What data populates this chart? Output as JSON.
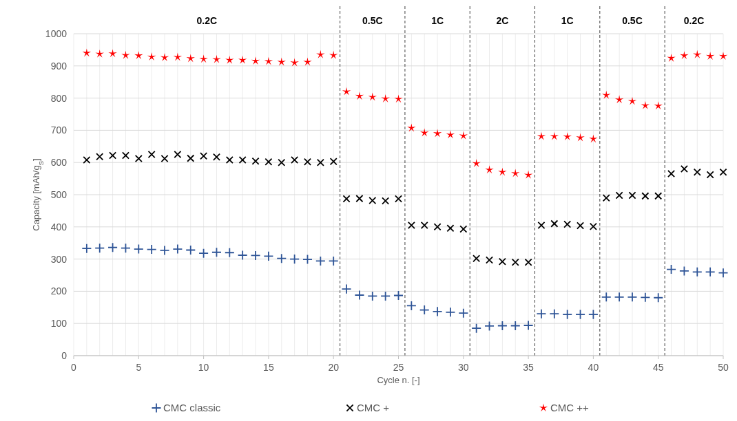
{
  "chart_data": {
    "type": "scatter",
    "xlabel": "Cycle n. [-]",
    "ylabel": "Capacity [mAh/g$_{S}$]",
    "x": [
      1,
      2,
      3,
      4,
      5,
      6,
      7,
      8,
      9,
      10,
      11,
      12,
      13,
      14,
      15,
      16,
      17,
      18,
      19,
      20,
      21,
      22,
      23,
      24,
      25,
      26,
      27,
      28,
      29,
      30,
      31,
      32,
      33,
      34,
      35,
      36,
      37,
      38,
      39,
      40,
      41,
      42,
      43,
      44,
      45,
      46,
      47,
      48,
      49,
      50
    ],
    "xlim": [
      0,
      50
    ],
    "xticks": [
      0,
      5,
      10,
      15,
      20,
      25,
      30,
      35,
      40,
      45,
      50
    ],
    "ylim": [
      0,
      1000
    ],
    "yticks": [
      0,
      100,
      200,
      300,
      400,
      500,
      600,
      700,
      800,
      900,
      1000
    ],
    "grid": true,
    "legend": "bottom",
    "series": [
      {
        "name": "CMC classic",
        "color": "#2f5597",
        "marker": "cross",
        "values": [
          333,
          334,
          336,
          334,
          331,
          330,
          327,
          331,
          328,
          318,
          321,
          320,
          312,
          311,
          309,
          302,
          300,
          299,
          294,
          294,
          207,
          188,
          185,
          185,
          187,
          155,
          142,
          137,
          135,
          132,
          85,
          92,
          93,
          93,
          94,
          130,
          130,
          128,
          128,
          128,
          182,
          182,
          182,
          181,
          180,
          268,
          263,
          260,
          260,
          257
        ]
      },
      {
        "name": "CMC +",
        "color": "#000000",
        "marker": "x",
        "values": [
          608,
          618,
          622,
          622,
          612,
          625,
          612,
          625,
          613,
          620,
          617,
          608,
          608,
          604,
          602,
          600,
          608,
          602,
          600,
          603,
          487,
          488,
          482,
          481,
          487,
          405,
          405,
          400,
          396,
          393,
          302,
          297,
          292,
          290,
          290,
          405,
          410,
          408,
          404,
          401,
          490,
          498,
          498,
          496,
          496,
          565,
          580,
          570,
          562,
          570
        ]
      },
      {
        "name": "CMC ++",
        "color": "#ff0000",
        "marker": "star",
        "values": [
          940,
          937,
          938,
          933,
          932,
          928,
          926,
          927,
          923,
          921,
          920,
          918,
          918,
          915,
          914,
          912,
          910,
          912,
          935,
          933,
          820,
          806,
          803,
          798,
          797,
          707,
          692,
          690,
          686,
          683,
          597,
          577,
          570,
          566,
          561,
          681,
          681,
          680,
          677,
          673,
          809,
          795,
          790,
          777,
          776,
          924,
          932,
          935,
          930,
          930
        ]
      }
    ],
    "ref_lines": [
      {
        "axis": "x",
        "value": 20.5,
        "line_style": "dashed",
        "color": "#404040"
      },
      {
        "axis": "x",
        "value": 25.5,
        "line_style": "dashed",
        "color": "#404040"
      },
      {
        "axis": "x",
        "value": 30.5,
        "line_style": "dashed",
        "color": "#404040"
      },
      {
        "axis": "x",
        "value": 35.5,
        "line_style": "dashed",
        "color": "#404040"
      },
      {
        "axis": "x",
        "value": 40.5,
        "line_style": "dashed",
        "color": "#404040"
      },
      {
        "axis": "x",
        "value": 45.5,
        "line_style": "dashed",
        "color": "#404040"
      }
    ],
    "annotations": [
      "0.2C",
      "0.5C",
      "1C",
      "2C",
      "1C",
      "0.5C",
      "0.2C"
    ]
  }
}
